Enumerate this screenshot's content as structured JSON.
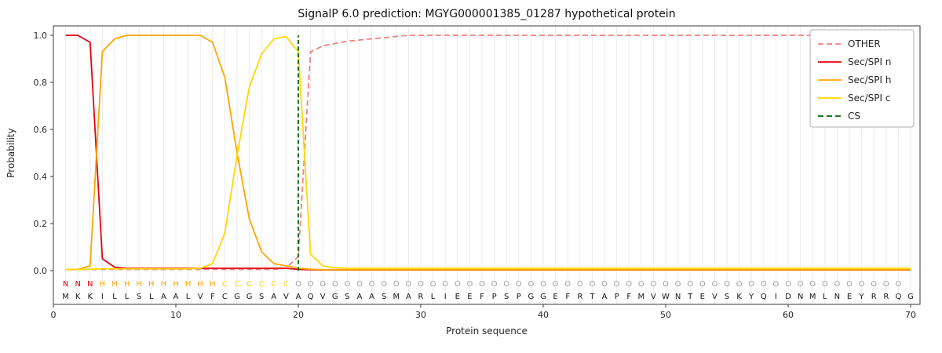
{
  "title": "SignalP 6.0 prediction: MGYG000001385_01287 hypothetical protein",
  "chart_data": {
    "type": "line",
    "title": "SignalP 6.0 prediction: MGYG000001385_01287 hypothetical protein",
    "xlabel": "Protein sequence",
    "ylabel": "Probability",
    "xlim": [
      0,
      70.8
    ],
    "ylim": [
      0,
      1.0
    ],
    "grid": "light vertical gridline at every residue position",
    "legend_position": "upper right",
    "x_ticks": [
      0,
      10,
      20,
      30,
      40,
      50,
      60,
      70
    ],
    "x_tick_labels": [
      "0",
      "10",
      "20",
      "30",
      "40",
      "50",
      "60",
      "70"
    ],
    "y_ticks": [
      0.0,
      0.2,
      0.4,
      0.6,
      0.8,
      1.0
    ],
    "y_tick_labels": [
      "0.0",
      "0.2",
      "0.4",
      "0.6",
      "0.8",
      "1.0"
    ],
    "series": [
      {
        "name": "OTHER",
        "color": "#f08080",
        "dashed": true,
        "values": [
          0.005,
          0.005,
          0.005,
          0.005,
          0.005,
          0.005,
          0.005,
          0.005,
          0.005,
          0.005,
          0.005,
          0.005,
          0.005,
          0.005,
          0.005,
          0.005,
          0.005,
          0.005,
          0.01,
          0.06,
          0.93,
          0.955,
          0.965,
          0.975,
          0.98,
          0.985,
          0.99,
          0.995,
          1.0,
          1.0,
          1.0,
          1.0,
          1.0,
          1.0,
          1.0,
          1.0,
          1.0,
          1.0,
          1.0,
          1.0,
          1.0,
          1.0,
          1.0,
          1.0,
          1.0,
          1.0,
          1.0,
          1.0,
          1.0,
          1.0,
          1.0,
          1.0,
          1.0,
          1.0,
          1.0,
          1.0,
          1.0,
          1.0,
          1.0,
          1.0,
          1.0,
          1.0,
          1.0,
          1.0,
          1.0,
          1.0,
          1.0,
          1.0,
          1.0,
          1.0
        ]
      },
      {
        "name": "Sec/SPI n",
        "color": "#e8000d",
        "dashed": false,
        "values": [
          1.0,
          1.0,
          0.97,
          0.05,
          0.015,
          0.01,
          0.01,
          0.01,
          0.01,
          0.01,
          0.01,
          0.01,
          0.01,
          0.01,
          0.01,
          0.01,
          0.01,
          0.01,
          0.01,
          0.005,
          0.004,
          0.003,
          0.003,
          0.003,
          0.003,
          0.003,
          0.003,
          0.003,
          0.003,
          0.003,
          0.003,
          0.003,
          0.003,
          0.003,
          0.003,
          0.003,
          0.003,
          0.003,
          0.003,
          0.003,
          0.003,
          0.003,
          0.003,
          0.003,
          0.003,
          0.003,
          0.003,
          0.003,
          0.003,
          0.003,
          0.003,
          0.003,
          0.003,
          0.003,
          0.003,
          0.003,
          0.003,
          0.003,
          0.003,
          0.003,
          0.003,
          0.003,
          0.003,
          0.003,
          0.003,
          0.003,
          0.003,
          0.003,
          0.003,
          0.003
        ]
      },
      {
        "name": "Sec/SPI h",
        "color": "#ffa500",
        "dashed": false,
        "values": [
          0.005,
          0.005,
          0.02,
          0.93,
          0.985,
          1.0,
          1.0,
          1.0,
          1.0,
          1.0,
          1.0,
          1.0,
          0.97,
          0.82,
          0.5,
          0.22,
          0.08,
          0.03,
          0.02,
          0.01,
          0.006,
          0.004,
          0.004,
          0.004,
          0.004,
          0.004,
          0.004,
          0.004,
          0.004,
          0.004,
          0.004,
          0.004,
          0.004,
          0.004,
          0.004,
          0.004,
          0.004,
          0.004,
          0.004,
          0.004,
          0.004,
          0.004,
          0.004,
          0.004,
          0.004,
          0.004,
          0.004,
          0.004,
          0.004,
          0.004,
          0.004,
          0.004,
          0.004,
          0.004,
          0.004,
          0.004,
          0.004,
          0.004,
          0.004,
          0.004,
          0.004,
          0.004,
          0.004,
          0.004,
          0.004,
          0.004,
          0.004,
          0.004,
          0.004,
          0.004
        ]
      },
      {
        "name": "Sec/SPI c",
        "color": "#ffd700",
        "dashed": false,
        "values": [
          0.005,
          0.005,
          0.006,
          0.008,
          0.008,
          0.008,
          0.008,
          0.008,
          0.008,
          0.008,
          0.008,
          0.01,
          0.03,
          0.16,
          0.49,
          0.78,
          0.92,
          0.985,
          0.995,
          0.93,
          0.07,
          0.02,
          0.012,
          0.01,
          0.01,
          0.01,
          0.01,
          0.01,
          0.01,
          0.01,
          0.01,
          0.01,
          0.01,
          0.01,
          0.01,
          0.01,
          0.01,
          0.01,
          0.01,
          0.01,
          0.01,
          0.01,
          0.01,
          0.01,
          0.01,
          0.01,
          0.01,
          0.01,
          0.01,
          0.01,
          0.01,
          0.01,
          0.01,
          0.01,
          0.01,
          0.01,
          0.01,
          0.01,
          0.01,
          0.01,
          0.01,
          0.01,
          0.01,
          0.01,
          0.01,
          0.01,
          0.01,
          0.01,
          0.01,
          0.01
        ]
      }
    ],
    "cs_line": {
      "name": "CS",
      "x": 20,
      "color": "#006400",
      "dashed": true
    },
    "legend_entries": [
      "OTHER",
      "Sec/SPI n",
      "Sec/SPI h",
      "Sec/SPI c",
      "CS"
    ],
    "region_labels": "NNNHHHHHHHHHHCCCCCCOOOOOOOOOOOOOOOOOOOOOOOOOOOOOOOOOOOOOOOOOOOOOOOOOO",
    "region_colors": {
      "N": "#e8000d",
      "H": "#ffa500",
      "C": "#ffd700",
      "O": "#a0a0a0"
    },
    "sequence": "MKKILLSLAALVFCGGSAVAQVGSAASMARLIEEFPSPGGEFRTAPFMVWNTEVSKYQIDNMLNEYRRQG",
    "sequence_color": "#1a1a1a"
  }
}
